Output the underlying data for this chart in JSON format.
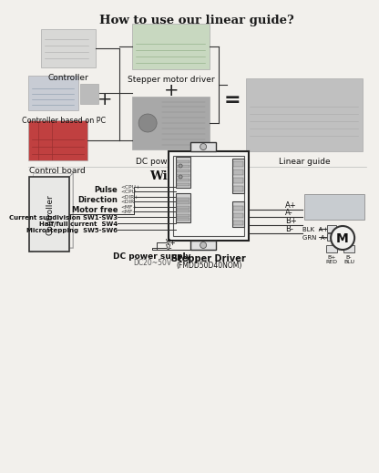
{
  "title1": "How to use our linear guide?",
  "title2": "Wire Diagram",
  "bg_color": "#f2f0ec",
  "labels_top": {
    "controller": "Controller",
    "controller_pc": "Controller based on PC",
    "control_board": "Control board",
    "stepper_driver": "Stepper motor driver",
    "dc_power": "DC power supply",
    "linear_guide": "Linear guide"
  },
  "wire_labels": {
    "pulse": "Pulse",
    "direction": "Direction",
    "motor_free": "Motor free",
    "current_sub": "Current subdivision SW1-SW3",
    "half_full": "Half/full current  SW4",
    "microstepping": "Microstepping  SW5-SW6",
    "dc_supply": "DC power supply",
    "dc_voltage": "DC20~50V",
    "stepper_driver_label": "Stepper Driver",
    "stepper_model": "(FMDD50D40NOM)",
    "controller_label": "Controller",
    "a_plus": "A+",
    "a_minus": "A-",
    "b_plus": "B+",
    "b_minus": "B-",
    "blk_label": "BLK  A+",
    "grn_label": "GRN  A-",
    "red_label": "B+\nRED",
    "blu_label": "B-\nBLU",
    "vplus": "V+",
    "vminus": "V-"
  }
}
